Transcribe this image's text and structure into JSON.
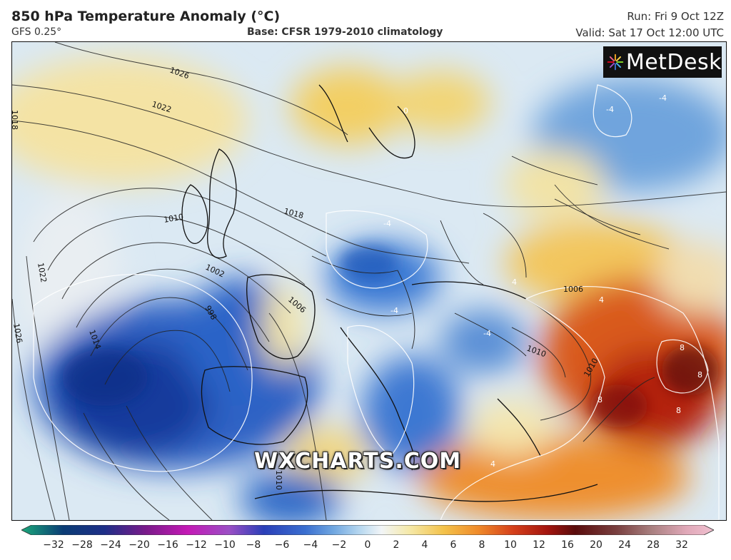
{
  "header": {
    "title": "850 hPa Temperature Anomaly (°C)",
    "model": "GFS 0.25°",
    "base": "Base: CFSR 1979-2010 climatology",
    "run": "Run: Fri 9 Oct 12Z",
    "valid": "Valid: Sat 17 Oct 12:00 UTC"
  },
  "logo": {
    "text": "MetDesk",
    "icon": "metdesk-burst-icon"
  },
  "watermark": "WXCHARTS.COM",
  "colorbar": {
    "ticks": [
      "−32",
      "−28",
      "−24",
      "−20",
      "−16",
      "−12",
      "−10",
      "−8",
      "−6",
      "−4",
      "−2",
      "0",
      "2",
      "4",
      "6",
      "8",
      "10",
      "12",
      "16",
      "20",
      "24",
      "28",
      "32"
    ],
    "colors": [
      "#1aa87a",
      "#0b3d75",
      "#1e2f88",
      "#7a1a8a",
      "#c419b5",
      "#9b4fc5",
      "#5a2db0",
      "#2a3fb8",
      "#3a6fd0",
      "#6fa6e0",
      "#b9d9f0",
      "#f2f5f7",
      "#f5e9a9",
      "#f3c24a",
      "#ef8a2a",
      "#d5401b",
      "#a3150f",
      "#5a0c0c",
      "#7a4040",
      "#a98080",
      "#c89a9a",
      "#e0a8b8",
      "#f0c0d0"
    ]
  },
  "isobars": [
    {
      "label": "1026"
    },
    {
      "label": "1022"
    },
    {
      "label": "1018"
    },
    {
      "label": "1018"
    },
    {
      "label": "1010"
    },
    {
      "label": "1014"
    },
    {
      "label": "1022"
    },
    {
      "label": "1026"
    },
    {
      "label": "1002"
    },
    {
      "label": "998"
    },
    {
      "label": "1006"
    },
    {
      "label": "1006"
    },
    {
      "label": "1010"
    },
    {
      "label": "1010"
    },
    {
      "label": "1010"
    }
  ],
  "anomaly_labels": [
    "-4",
    "-4",
    "-4",
    "-4",
    "-4",
    "4",
    "4",
    "8",
    "8",
    "8",
    "8",
    "0",
    "4",
    "-4"
  ]
}
